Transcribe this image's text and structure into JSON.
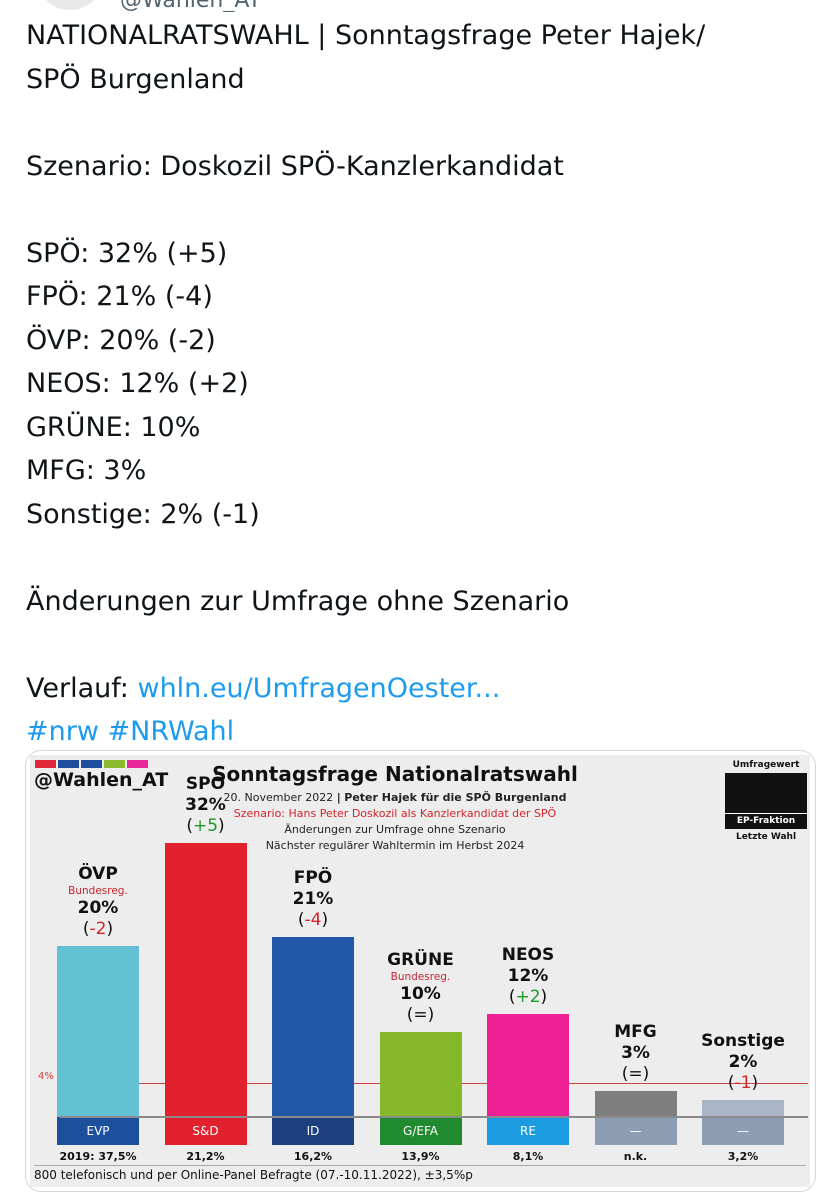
{
  "tweet": {
    "handle_partial": "@Wahlen_AT",
    "lines": [
      "NATIONALRATSWAHL | Sonntagsfrage Peter Hajek/",
      "SPÖ Burgenland",
      "",
      "Szenario: Doskozil SPÖ-Kanzlerkandidat",
      "",
      "SPÖ: 32% (+5)",
      "FPÖ: 21% (-4)",
      "ÖVP: 20% (-2)",
      "NEOS: 12% (+2)",
      "GRÜNE: 10%",
      "MFG: 3%",
      "Sonstige: 2% (-1)",
      "",
      "Änderungen zur Umfrage ohne Szenario",
      ""
    ],
    "verlauf_label": "Verlauf:",
    "verlauf_link": "whln.eu/UmfragenOester...",
    "hashtags": "#nrw #NRWahl"
  },
  "graphic": {
    "brand": "@Wahlen_AT",
    "title": "Sonntagsfrage Nationalratswahl",
    "date": "20. November 2022",
    "sep": "|",
    "institute": "Peter Hajek für die SPÖ Burgenland",
    "scenario": "Szenario: Hans Peter Doskozil als Kanzlerkandidat der SPÖ",
    "changes_note": "Änderungen zur Umfrage ohne Szenario",
    "next_election": "Nächster regulärer Wahltermin im Herbst 2024",
    "legend": {
      "poll_value": "Umfragewert",
      "ep_fraction": "EP-Fraktion",
      "last_election": "Letzte Wahl"
    },
    "threshold_label": "4%",
    "strip_colors": [
      "#e0283a",
      "#1f4e9c",
      "#1f4e9c",
      "#8cba2e",
      "#e8279b"
    ],
    "footnote": "800 telefonisch und per Online-Panel Befragte (07.-10.11.2022), ±3,5%p"
  },
  "chart_data": {
    "type": "bar",
    "title": "Sonntagsfrage Nationalratswahl",
    "categories": [
      "ÖVP",
      "SPÖ",
      "FPÖ",
      "GRÜNE",
      "NEOS",
      "MFG",
      "Sonstige"
    ],
    "values": [
      20,
      32,
      21,
      10,
      12,
      3,
      2
    ],
    "changes": [
      "-2",
      "+5",
      "-4",
      "=",
      "+2",
      "=",
      "-1"
    ],
    "government_note": [
      "Bundesreg.",
      "",
      "",
      "Bundesreg.",
      "",
      "",
      ""
    ],
    "ep_fractions": [
      "EVP",
      "S&D",
      "ID",
      "G/EFA",
      "RE",
      "—",
      "—"
    ],
    "last_election": [
      "2019: 37,5%",
      "21,2%",
      "16,2%",
      "13,9%",
      "8,1%",
      "n.k.",
      "3,2%"
    ],
    "colors": [
      "#63c1d3",
      "#e2212e",
      "#2358a8",
      "#86b82c",
      "#ef2096",
      "#7f7f7f",
      "#a9b6c8"
    ],
    "fraction_colors": [
      "#1c4f9c",
      "#e2212e",
      "#1c3f80",
      "#1f8a2e",
      "#1a9be0",
      "#8d9db4",
      "#8d9db4"
    ],
    "threshold": 4,
    "ylim": [
      0,
      40
    ]
  }
}
